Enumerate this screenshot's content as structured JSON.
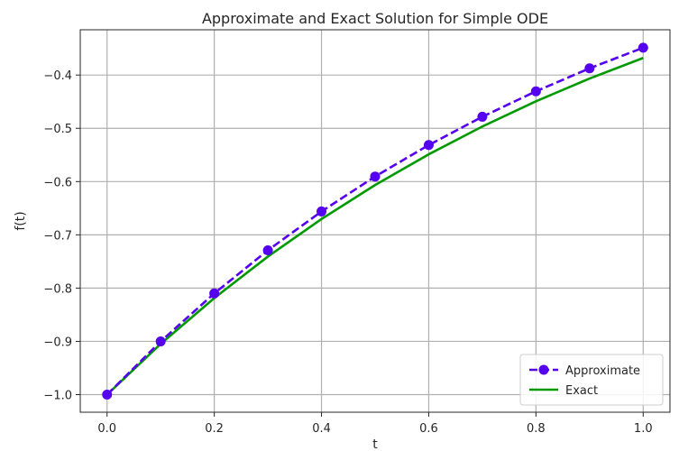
{
  "chart_data": {
    "type": "line",
    "title": "Approximate and Exact Solution for Simple ODE",
    "xlabel": "t",
    "ylabel": "f(t)",
    "xlim": [
      -0.05,
      1.05
    ],
    "ylim": [
      -1.033,
      -0.315
    ],
    "grid": true,
    "legend_position": "lower-right",
    "x_ticks": [
      0.0,
      0.2,
      0.4,
      0.6,
      0.8,
      1.0
    ],
    "x_tick_labels": [
      "0.0",
      "0.2",
      "0.4",
      "0.6",
      "0.8",
      "1.0"
    ],
    "y_ticks": [
      -1.0,
      -0.9,
      -0.8,
      -0.7,
      -0.6,
      -0.5,
      -0.4
    ],
    "y_tick_labels": [
      "−1.0",
      "−0.9",
      "−0.8",
      "−0.7",
      "−0.6",
      "−0.5",
      "−0.4"
    ],
    "series": [
      {
        "name": "Approximate",
        "color": "#5500ee",
        "style": "dashed",
        "marker": "circle",
        "x": [
          0.0,
          0.1,
          0.2,
          0.3,
          0.4,
          0.5,
          0.6,
          0.7,
          0.8,
          0.9,
          1.0
        ],
        "y": [
          -1.0,
          -0.9,
          -0.81,
          -0.729,
          -0.6561,
          -0.5905,
          -0.5314,
          -0.4783,
          -0.4305,
          -0.3874,
          -0.3487
        ]
      },
      {
        "name": "Exact",
        "color": "#009900",
        "style": "solid",
        "marker": "none",
        "x": [
          0.0,
          0.1,
          0.2,
          0.3,
          0.4,
          0.5,
          0.6,
          0.7,
          0.8,
          0.9,
          1.0
        ],
        "y": [
          -1.0,
          -0.9048,
          -0.8187,
          -0.7408,
          -0.6703,
          -0.6065,
          -0.5488,
          -0.4966,
          -0.4493,
          -0.4066,
          -0.3679
        ]
      }
    ]
  }
}
